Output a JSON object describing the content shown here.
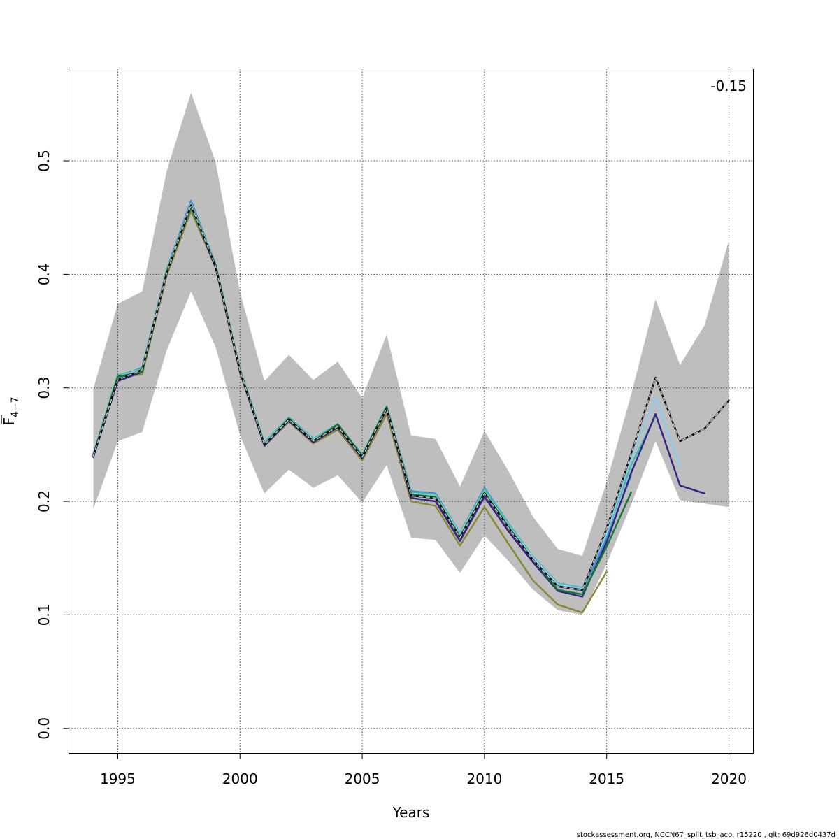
{
  "chart_data": {
    "type": "line",
    "xlabel": "Years",
    "ylabel_main": "F",
    "ylabel_sub": "4−7",
    "xlim": [
      1993,
      2021
    ],
    "ylim": [
      -0.022,
      0.581
    ],
    "xticks": [
      1995,
      2000,
      2005,
      2010,
      2015,
      2020
    ],
    "yticks": [
      0.0,
      0.1,
      0.2,
      0.3,
      0.4,
      0.5
    ],
    "ytick_labels": [
      "0.0",
      "0.1",
      "0.2",
      "0.3",
      "0.4",
      "0.5"
    ],
    "grid": true,
    "annotation": "-0.15",
    "footer": "stockassessment.org, NCCN67_split_tsb_aco, r15220 , git: 69d926d0437d",
    "band": {
      "color": "#bebebe",
      "x": [
        1994,
        1995,
        1996,
        1997,
        1998,
        1999,
        2000,
        2001,
        2002,
        2003,
        2004,
        2005,
        2006,
        2007,
        2008,
        2009,
        2010,
        2011,
        2012,
        2013,
        2014,
        2015,
        2016,
        2017,
        2018,
        2019,
        2020
      ],
      "upper": [
        0.299,
        0.374,
        0.385,
        0.491,
        0.56,
        0.499,
        0.384,
        0.306,
        0.329,
        0.307,
        0.323,
        0.291,
        0.347,
        0.258,
        0.255,
        0.213,
        0.262,
        0.226,
        0.186,
        0.158,
        0.152,
        0.217,
        0.294,
        0.378,
        0.32,
        0.355,
        0.43
      ],
      "lower": [
        0.193,
        0.253,
        0.261,
        0.333,
        0.385,
        0.336,
        0.258,
        0.207,
        0.228,
        0.212,
        0.223,
        0.199,
        0.232,
        0.168,
        0.166,
        0.137,
        0.17,
        0.147,
        0.122,
        0.104,
        0.1,
        0.145,
        0.197,
        0.253,
        0.201,
        0.198,
        0.195
      ]
    },
    "series": [
      {
        "color": "#888833",
        "dashed": false,
        "x": [
          1994,
          1995,
          1996,
          1997,
          1998,
          1999,
          2000,
          2001,
          2002,
          2003,
          2004,
          2005,
          2006,
          2007,
          2008,
          2009,
          2010,
          2011,
          2012,
          2013,
          2014,
          2015
        ],
        "y": [
          0.242,
          0.309,
          0.312,
          0.399,
          0.456,
          0.406,
          0.313,
          0.249,
          0.27,
          0.251,
          0.263,
          0.236,
          0.277,
          0.2,
          0.196,
          0.161,
          0.195,
          0.162,
          0.13,
          0.109,
          0.102,
          0.138
        ]
      },
      {
        "color": "#4488cc",
        "dashed": false,
        "x": [
          1994,
          1995,
          1996,
          1997,
          1998,
          1999,
          2000,
          2001,
          2002,
          2003,
          2004,
          2005,
          2006,
          2007,
          2008,
          2009,
          2010,
          2011,
          2012,
          2013,
          2014,
          2015,
          2016
        ],
        "y": [
          0.241,
          0.309,
          0.318,
          0.404,
          0.465,
          0.409,
          0.316,
          0.251,
          0.274,
          0.255,
          0.268,
          0.241,
          0.284,
          0.209,
          0.207,
          0.172,
          0.212,
          0.18,
          0.15,
          0.126,
          0.121,
          0.167,
          0.223
        ]
      },
      {
        "color": "#44bbaa",
        "dashed": false,
        "x": [
          1994,
          1995,
          1996,
          1997,
          1998,
          1999,
          2000,
          2001,
          2002,
          2003,
          2004,
          2005,
          2006,
          2007,
          2008,
          2009,
          2010,
          2011,
          2012,
          2013,
          2014,
          2015,
          2016,
          2017
        ],
        "y": [
          0.242,
          0.311,
          0.317,
          0.403,
          0.463,
          0.409,
          0.317,
          0.252,
          0.274,
          0.255,
          0.268,
          0.241,
          0.284,
          0.208,
          0.206,
          0.172,
          0.211,
          0.18,
          0.151,
          0.128,
          0.124,
          0.171,
          0.232,
          0.275
        ]
      },
      {
        "color": "#88ccee",
        "dashed": false,
        "x": [
          1994,
          1995,
          1996,
          1997,
          1998,
          1999,
          2000,
          2001,
          2002,
          2003,
          2004,
          2005,
          2006,
          2007,
          2008,
          2009,
          2010,
          2011,
          2012,
          2013,
          2014,
          2015,
          2016,
          2017,
          2018
        ],
        "y": [
          0.242,
          0.31,
          0.316,
          0.402,
          0.462,
          0.408,
          0.316,
          0.251,
          0.273,
          0.254,
          0.267,
          0.24,
          0.283,
          0.207,
          0.205,
          0.171,
          0.209,
          0.178,
          0.15,
          0.127,
          0.123,
          0.172,
          0.238,
          0.291,
          0.231
        ]
      },
      {
        "color": "#332288",
        "dashed": false,
        "x": [
          1994,
          1995,
          1996,
          1997,
          1998,
          1999,
          2000,
          2001,
          2002,
          2003,
          2004,
          2005,
          2006,
          2007,
          2008,
          2009,
          2010,
          2011,
          2012,
          2013,
          2014,
          2015,
          2016,
          2017,
          2018,
          2019
        ],
        "y": [
          0.239,
          0.306,
          0.314,
          0.401,
          0.46,
          0.406,
          0.314,
          0.249,
          0.271,
          0.252,
          0.265,
          0.238,
          0.281,
          0.203,
          0.2,
          0.165,
          0.204,
          0.173,
          0.146,
          0.121,
          0.116,
          0.164,
          0.225,
          0.277,
          0.214,
          0.207
        ]
      },
      {
        "color": "#117733",
        "dashed": false,
        "x": [
          1994,
          1995,
          1996,
          1997,
          1998,
          1999,
          2000,
          2001,
          2002,
          2003,
          2004,
          2005,
          2006,
          2007,
          2008,
          2009,
          2010,
          2011,
          2012,
          2013,
          2014,
          2015,
          2016
        ],
        "y": [
          0.241,
          0.31,
          0.314,
          0.402,
          0.459,
          0.408,
          0.315,
          0.25,
          0.273,
          0.253,
          0.268,
          0.24,
          0.283,
          0.206,
          0.204,
          0.169,
          0.208,
          0.177,
          0.148,
          0.122,
          0.118,
          0.16,
          0.208
        ]
      },
      {
        "color": "#000000",
        "dashed": false,
        "x": [
          1994,
          1995,
          1996,
          1997,
          1998,
          1999,
          2000,
          2001,
          2002,
          2003,
          2004,
          2005,
          2006,
          2007,
          2008,
          2009,
          2010,
          2011,
          2012,
          2013,
          2014,
          2015,
          2016,
          2017,
          2018,
          2019,
          2020
        ],
        "y": [
          0.24,
          0.307,
          0.316,
          0.401,
          0.461,
          0.407,
          0.315,
          0.25,
          0.272,
          0.253,
          0.266,
          0.239,
          0.282,
          0.205,
          0.203,
          0.168,
          0.207,
          0.176,
          0.148,
          0.125,
          0.122,
          0.176,
          0.242,
          0.309,
          0.253,
          0.264,
          0.289
        ]
      },
      {
        "color": "#bebebe",
        "dashed": true,
        "x": [
          1994,
          1995,
          1996,
          1997,
          1998,
          1999,
          2000,
          2001,
          2002,
          2003,
          2004,
          2005,
          2006,
          2007,
          2008,
          2009,
          2010,
          2011,
          2012,
          2013,
          2014,
          2015,
          2016,
          2017,
          2018,
          2019,
          2020
        ],
        "y": [
          0.24,
          0.307,
          0.316,
          0.401,
          0.461,
          0.407,
          0.315,
          0.25,
          0.272,
          0.253,
          0.266,
          0.239,
          0.282,
          0.205,
          0.203,
          0.168,
          0.207,
          0.176,
          0.148,
          0.125,
          0.122,
          0.176,
          0.242,
          0.309,
          0.253,
          0.264,
          0.289
        ]
      }
    ]
  }
}
